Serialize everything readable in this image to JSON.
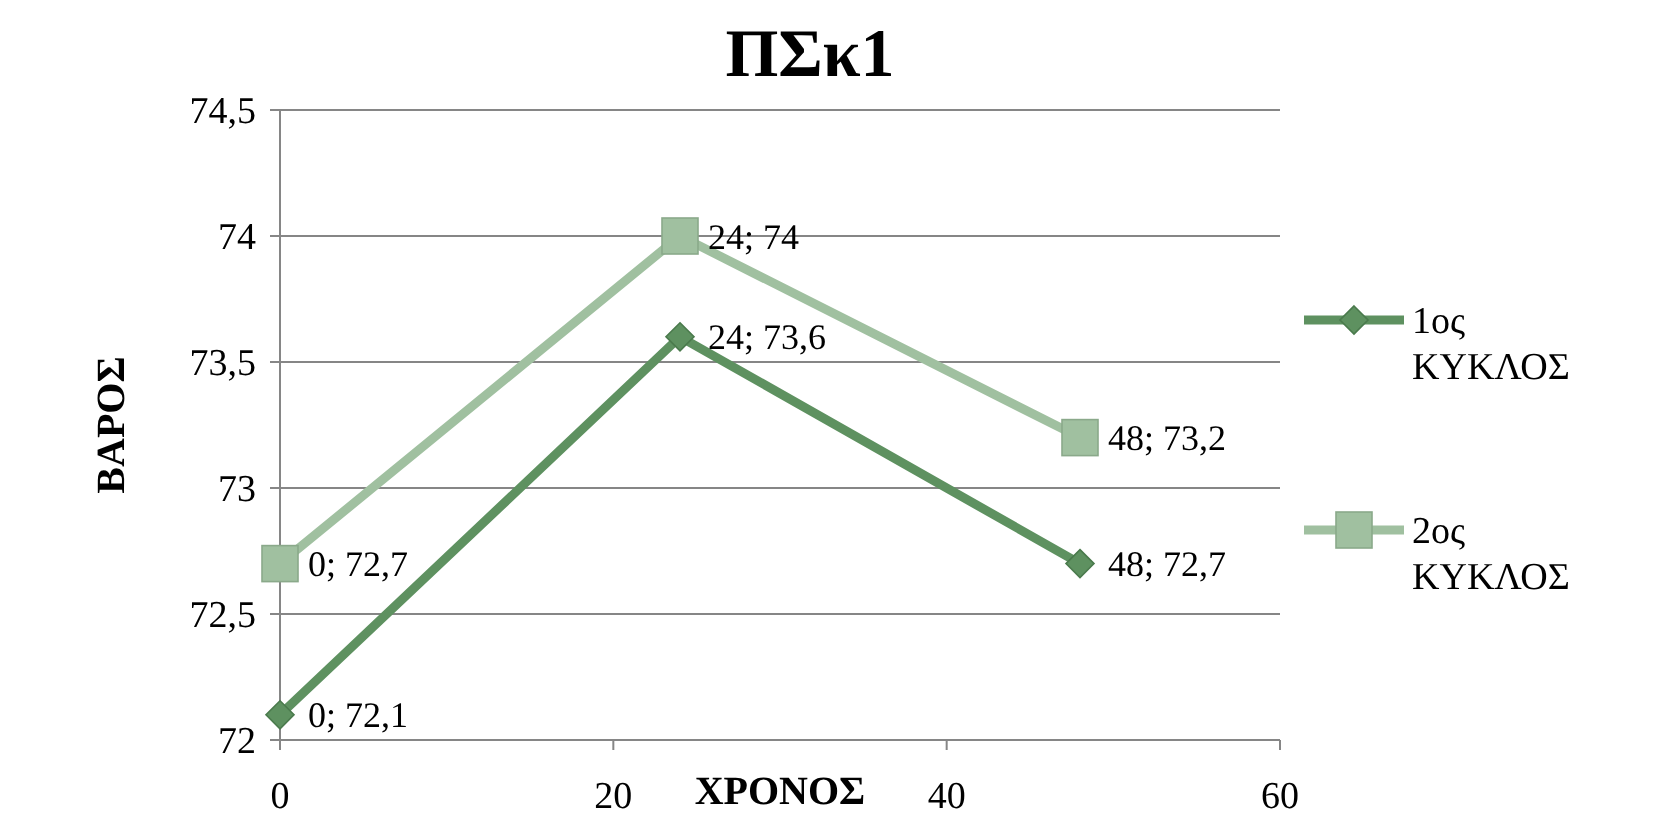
{
  "chart_data": {
    "type": "line",
    "title": "ΠΣκ1",
    "xlabel": "ΧΡΟΝΟΣ",
    "ylabel": "ΒΑΡΟΣ",
    "xlim": [
      0,
      60
    ],
    "xticks": [
      0,
      20,
      40,
      60
    ],
    "ylim": [
      72,
      74.5
    ],
    "yticks": [
      72,
      {
        "value": 72.5,
        "label": "72,5"
      },
      73,
      {
        "value": 73.5,
        "label": "73,5"
      },
      74,
      {
        "value": 74.5,
        "label": "74,5"
      }
    ],
    "grid": "y",
    "legend": "right",
    "series": [
      {
        "name": "1ος ΚΥΚΛΟΣ",
        "color": "#5e9160",
        "marker": "diamond",
        "x": [
          0,
          24,
          48
        ],
        "values": [
          72.1,
          73.6,
          72.7
        ],
        "value_labels": [
          "0; 72,1",
          "24; 73,6",
          "48; 72,7"
        ]
      },
      {
        "name": "2ος ΚΥΚΛΟΣ",
        "color": "#a0c0a0",
        "marker": "square",
        "x": [
          0,
          24,
          48
        ],
        "values": [
          72.7,
          74,
          73.2
        ],
        "value_labels": [
          "0; 72,7",
          "24; 74",
          "48; 73,2"
        ]
      }
    ]
  }
}
